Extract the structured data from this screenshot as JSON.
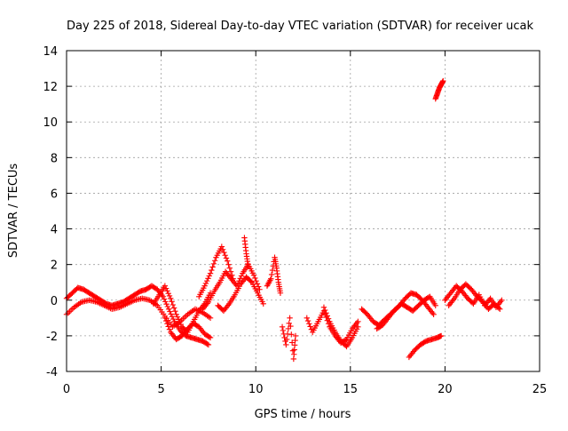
{
  "chart_data": {
    "type": "scatter",
    "title": "Day 225 of 2018, Sidereal Day-to-day VTEC variation (SDTVAR) for receiver ucak",
    "xlabel": "GPS time / hours",
    "ylabel": "SDTVAR / TECUs",
    "xlim": [
      0,
      25
    ],
    "ylim": [
      -4,
      14
    ],
    "xticks": [
      0,
      5,
      10,
      15,
      20,
      25
    ],
    "yticks": [
      -4,
      -2,
      0,
      2,
      4,
      6,
      8,
      10,
      12,
      14
    ],
    "xtick_labels": [
      "0",
      "5",
      "10",
      "15",
      "20",
      "25"
    ],
    "ytick_labels": [
      "-4",
      "-2",
      "0",
      "2",
      "4",
      "6",
      "8",
      "10",
      "12",
      "14"
    ],
    "grid": true,
    "marker": "+",
    "series": [
      {
        "name": "SDTVAR",
        "color": "#ff0000",
        "tracks": [
          {
            "x": [
              0.0,
              0.3,
              0.6,
              0.9,
              1.2,
              1.5,
              1.8,
              2.1,
              2.4,
              2.7,
              3.0,
              3.3,
              3.6,
              3.9,
              4.2,
              4.5,
              4.8,
              5.1,
              5.4,
              5.7,
              6.0,
              6.3,
              6.6,
              6.9,
              7.2,
              7.5
            ],
            "y": [
              0.1,
              0.4,
              0.7,
              0.6,
              0.4,
              0.2,
              0.0,
              -0.2,
              -0.3,
              -0.2,
              -0.1,
              0.1,
              0.3,
              0.5,
              0.6,
              0.8,
              0.6,
              0.2,
              -0.5,
              -1.2,
              -1.7,
              -2.0,
              -2.1,
              -2.2,
              -2.3,
              -2.5
            ]
          },
          {
            "x": [
              0.0,
              0.4,
              0.8,
              1.2,
              1.6,
              2.0,
              2.4,
              2.8,
              3.2,
              3.6,
              4.0,
              4.4,
              4.8,
              5.2,
              5.6,
              6.0,
              6.4,
              6.8,
              7.2,
              7.6
            ],
            "y": [
              -0.8,
              -0.4,
              -0.1,
              0.0,
              -0.1,
              -0.3,
              -0.5,
              -0.4,
              -0.2,
              0.0,
              0.1,
              0.0,
              -0.3,
              -0.9,
              -1.5,
              -1.2,
              -0.8,
              -0.5,
              -0.7,
              -1.0
            ]
          },
          {
            "x": [
              4.6,
              4.9,
              5.2,
              5.5,
              5.8,
              6.1,
              6.4,
              6.7,
              7.0,
              7.3,
              7.6
            ],
            "y": [
              -0.2,
              0.3,
              0.8,
              0.1,
              -0.8,
              -1.5,
              -1.8,
              -1.2,
              -0.6,
              -0.2,
              0.4
            ]
          },
          {
            "x": [
              5.2,
              5.5,
              5.8,
              6.1,
              6.4,
              6.7,
              7.0,
              7.3,
              7.6
            ],
            "y": [
              -1.0,
              -1.8,
              -2.2,
              -2.0,
              -1.6,
              -1.3,
              -1.5,
              -1.9,
              -2.1
            ]
          },
          {
            "x": [
              7.0,
              7.3,
              7.6,
              7.9,
              8.2,
              8.5,
              8.8
            ],
            "y": [
              0.2,
              0.8,
              1.5,
              2.4,
              3.0,
              2.2,
              1.2
            ]
          },
          {
            "x": [
              7.2,
              7.5,
              7.8,
              8.1,
              8.4,
              8.7,
              9.0,
              9.3,
              9.6,
              9.9,
              10.2
            ],
            "y": [
              -0.5,
              -0.1,
              0.5,
              1.0,
              1.6,
              1.2,
              0.8,
              1.5,
              2.0,
              1.4,
              0.6
            ]
          },
          {
            "x": [
              8.0,
              8.3,
              8.6,
              8.9,
              9.2,
              9.5,
              9.8,
              10.1,
              10.4
            ],
            "y": [
              -0.3,
              -0.6,
              -0.2,
              0.3,
              0.9,
              1.3,
              1.0,
              0.4,
              -0.2
            ]
          },
          {
            "x": [
              9.4,
              9.5,
              9.6
            ],
            "y": [
              3.5,
              2.6,
              1.9
            ]
          },
          {
            "x": [
              10.6,
              10.8,
              11.0,
              11.1,
              11.2,
              11.3
            ],
            "y": [
              0.8,
              1.2,
              2.4,
              1.8,
              1.0,
              0.4
            ]
          },
          {
            "x": [
              11.4,
              11.6,
              11.8,
              12.0,
              12.1
            ],
            "y": [
              -1.5,
              -2.5,
              -1.0,
              -3.3,
              -2.0
            ]
          },
          {
            "x": [
              12.7,
              13.0,
              13.3,
              13.6,
              13.9,
              14.2,
              14.5,
              14.8,
              15.1,
              15.4
            ],
            "y": [
              -1.0,
              -1.8,
              -1.2,
              -0.6,
              -1.5,
              -2.0,
              -2.4,
              -2.2,
              -1.6,
              -1.2
            ]
          },
          {
            "x": [
              13.6,
              13.9,
              14.2,
              14.5,
              14.8,
              15.1,
              15.4
            ],
            "y": [
              -0.4,
              -1.2,
              -1.8,
              -2.3,
              -2.6,
              -2.1,
              -1.5
            ]
          },
          {
            "x": [
              15.6,
              15.9,
              16.2,
              16.5,
              16.8,
              17.1,
              17.4,
              17.7,
              18.0,
              18.3,
              18.6,
              18.9,
              19.2,
              19.5
            ],
            "y": [
              -0.5,
              -0.8,
              -1.2,
              -1.4,
              -1.1,
              -0.8,
              -0.5,
              -0.2,
              -0.4,
              -0.6,
              -0.3,
              0.0,
              0.2,
              -0.3
            ]
          },
          {
            "x": [
              16.4,
              16.7,
              17.0,
              17.3,
              17.6,
              17.9,
              18.2,
              18.5,
              18.8,
              19.1,
              19.4
            ],
            "y": [
              -1.6,
              -1.4,
              -1.0,
              -0.6,
              -0.3,
              0.1,
              0.4,
              0.3,
              0.0,
              -0.4,
              -0.8
            ]
          },
          {
            "x": [
              18.1,
              18.4,
              18.7,
              19.0,
              19.3,
              19.6,
              19.8
            ],
            "y": [
              -3.2,
              -2.8,
              -2.5,
              -2.3,
              -2.2,
              -2.1,
              -2.0
            ]
          },
          {
            "x": [
              19.5,
              19.6,
              19.7,
              19.8,
              19.9
            ],
            "y": [
              11.3,
              11.6,
              11.9,
              12.1,
              12.3
            ]
          },
          {
            "x": [
              20.0,
              20.3,
              20.6,
              20.9,
              21.2,
              21.5,
              21.8,
              22.1,
              22.4,
              22.7,
              23.0
            ],
            "y": [
              0.0,
              0.4,
              0.8,
              0.5,
              0.1,
              -0.2,
              0.3,
              -0.3,
              0.1,
              -0.4,
              0.0
            ]
          },
          {
            "x": [
              20.2,
              20.5,
              20.8,
              21.1,
              21.4,
              21.7,
              22.0,
              22.3,
              22.6,
              22.9
            ],
            "y": [
              -0.3,
              0.1,
              0.6,
              0.9,
              0.6,
              0.2,
              -0.1,
              -0.5,
              -0.2,
              -0.5
            ]
          }
        ]
      }
    ]
  }
}
